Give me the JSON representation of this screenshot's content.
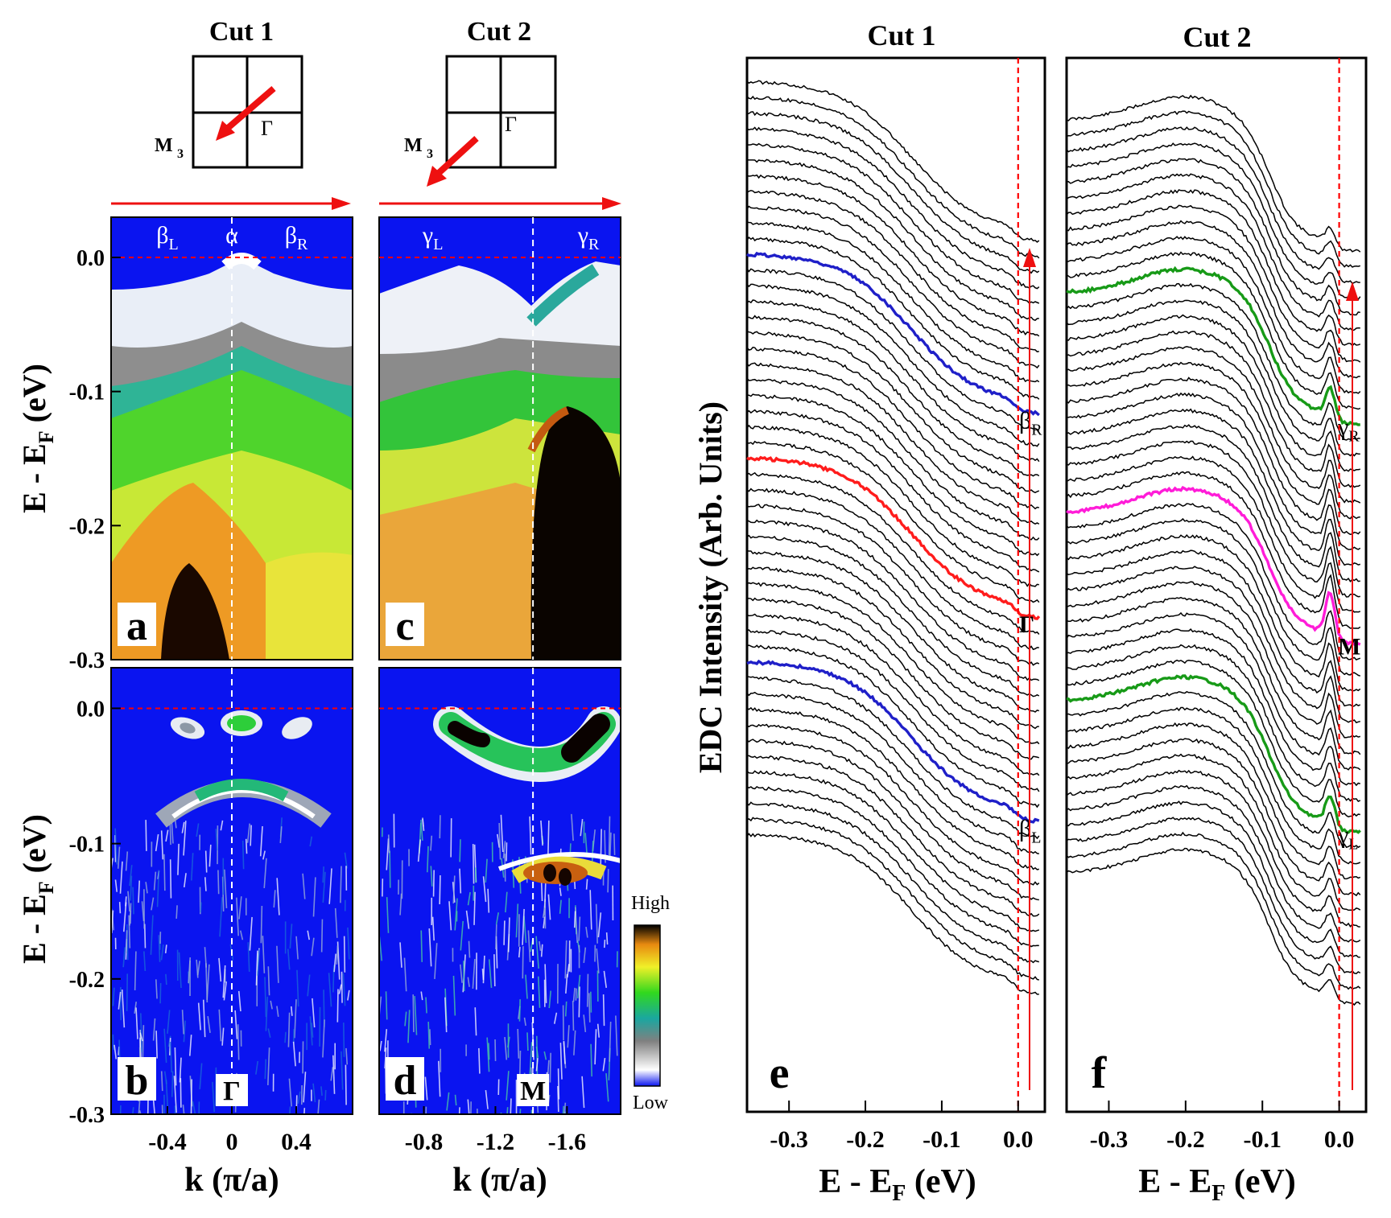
{
  "figure": {
    "cut1_title": "Cut 1",
    "cut2_title": "Cut 2",
    "bz_labels": {
      "m3": "M",
      "m3_sub": "3",
      "gamma": "Γ"
    },
    "ylabel_main": "E - E",
    "ylabel_sub": "F",
    "ylabel_unit": " (eV)",
    "xlabel_k": "k (π/a)",
    "xlabel_e_main": "E - E",
    "xlabel_e_sub": "F",
    "xlabel_e_unit": " (eV)",
    "edc_ylabel": "EDC Intensity (Arb. Units)",
    "colorbar_high": "High",
    "colorbar_low": "Low",
    "colors": {
      "fermi": "#ff0000",
      "arrow": "#ff1010",
      "background_map": "#0a14f0"
    }
  },
  "chart_data": [
    {
      "panel": "a",
      "type": "heatmap",
      "title": "Cut 1",
      "ylabel": "E - EF (eV)",
      "xlim": [
        -0.75,
        0.75
      ],
      "ylim": [
        -0.3,
        0.03
      ],
      "yticks": [
        "0.0",
        "-0.1",
        "-0.2",
        "-0.3"
      ],
      "band_labels": [
        {
          "text": "β",
          "sub": "L",
          "k": -0.4
        },
        {
          "text": "α",
          "sub": "",
          "k": 0
        },
        {
          "text": "β",
          "sub": "R",
          "k": 0.4
        }
      ],
      "marker_k": 0
    },
    {
      "panel": "b",
      "type": "heatmap",
      "xlabel": "k (π/a)",
      "ylabel": "E - EF (eV)",
      "xlim": [
        -0.75,
        0.75
      ],
      "ylim": [
        -0.3,
        0.03
      ],
      "xticks": [
        "-0.4",
        "0",
        "0.4"
      ],
      "xtick_values": [
        -0.4,
        0,
        0.4
      ],
      "yticks": [
        "0.0",
        "-0.1",
        "-0.2",
        "-0.3"
      ],
      "point_label": "Γ",
      "marker_k": 0
    },
    {
      "panel": "c",
      "type": "heatmap",
      "title": "Cut 2",
      "xlim": [
        -0.55,
        -1.9
      ],
      "ylim": [
        -0.3,
        0.03
      ],
      "band_labels": [
        {
          "text": "γ",
          "sub": "L",
          "k": -0.85
        },
        {
          "text": "γ",
          "sub": "R",
          "k": -1.72
        }
      ],
      "marker_k": -1.41
    },
    {
      "panel": "d",
      "type": "heatmap",
      "xlabel": "k (π/a)",
      "xlim": [
        -0.55,
        -1.9
      ],
      "ylim": [
        -0.3,
        0.03
      ],
      "xticks": [
        "-0.8",
        "-1.2",
        "-1.6"
      ],
      "xtick_values": [
        -0.8,
        -1.2,
        -1.6
      ],
      "point_label": "M",
      "marker_k": -1.41
    },
    {
      "panel": "e",
      "type": "line",
      "title": "Cut 1",
      "xlabel": "E - EF (eV)",
      "ylabel": "EDC Intensity (Arb. Units)",
      "xlim": [
        -0.355,
        0.035
      ],
      "xticks": [
        "-0.3",
        "-0.2",
        "-0.1",
        "0.0"
      ],
      "xtick_values": [
        -0.3,
        -0.2,
        -0.1,
        0.0
      ],
      "n_curves": 49,
      "highlighted": [
        {
          "index": 11,
          "color": "#1f1fc8",
          "label": "β",
          "sub": "R"
        },
        {
          "index": 24,
          "color": "#ff1c1c",
          "label": "Γ",
          "sub": ""
        },
        {
          "index": 37,
          "color": "#1f1fc8",
          "label": "β",
          "sub": "L"
        }
      ],
      "edge_step_eV": 0.06,
      "fermi_eV": 0.0
    },
    {
      "panel": "f",
      "type": "line",
      "title": "Cut 2",
      "xlabel": "E - EF (eV)",
      "xlim": [
        -0.355,
        0.035
      ],
      "xticks": [
        "-0.3",
        "-0.2",
        "-0.1",
        "0.0"
      ],
      "xtick_values": [
        -0.3,
        -0.2,
        -0.1,
        0.0
      ],
      "n_curves": 49,
      "highlighted": [
        {
          "index": 11,
          "color": "#179a17",
          "label": "γ",
          "sub": "R"
        },
        {
          "index": 25,
          "color": "#ff1cd8",
          "label": "M",
          "sub": ""
        },
        {
          "index": 37,
          "color": "#179a17",
          "label": "γ",
          "sub": "L"
        }
      ],
      "peak_eV": -0.015,
      "hump_eV": -0.2,
      "fermi_eV": 0.0
    }
  ]
}
